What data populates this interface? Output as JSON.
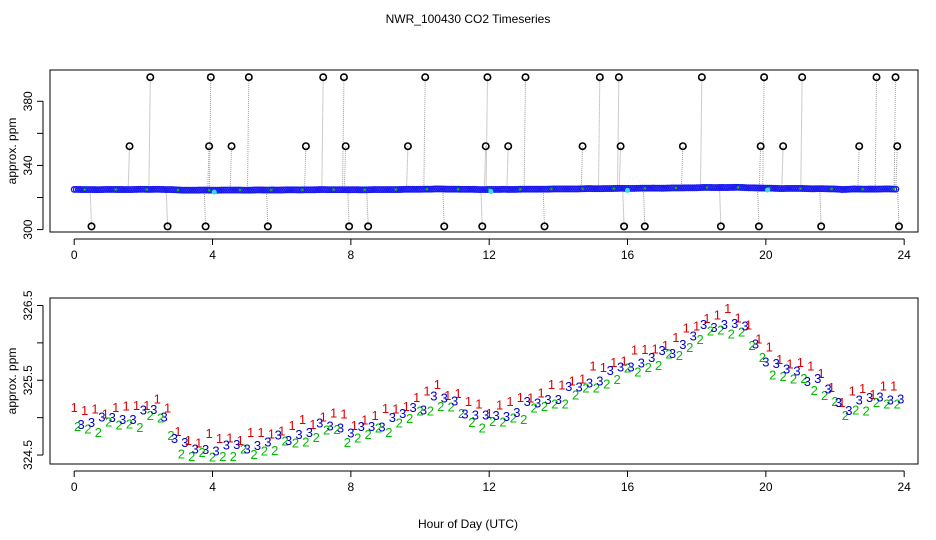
{
  "figure": {
    "title": "NWR_100430  CO2 Timeseries",
    "shared_xlabel": "Hour of Day (UTC)"
  },
  "colors": {
    "axis": "#000000",
    "series_1": "#dd0000",
    "series_2": "#00bb00",
    "series_3": "#0000cc",
    "top_points": "#1a1aee",
    "outline_points": "#000000",
    "connector": "#9a9a9a",
    "cyan_points": "#33dddd"
  },
  "chart_data": [
    {
      "type": "scatter",
      "panel": "top",
      "title": "",
      "xlabel": "",
      "ylabel": "approx. ppm",
      "xlim": [
        -0.7,
        24.4
      ],
      "ylim": [
        298.5,
        399.5
      ],
      "xticks": [
        0,
        4,
        8,
        12,
        16,
        20,
        24
      ],
      "yticks": [
        300,
        320,
        340,
        360,
        380
      ],
      "ytick_labels": [
        "300",
        "",
        "340",
        "",
        "380"
      ],
      "xtick_labels": [
        "0",
        "4",
        "8",
        "12",
        "16",
        "20",
        "24"
      ],
      "baseline": {
        "description": "dense run of nearly flat points from the lower panel, ~324.5-326.5 ppm",
        "x_start": 0.0,
        "x_end": 23.8,
        "step": 0.06
      },
      "spikes": [
        {
          "x": 0.5,
          "y": 302
        },
        {
          "x": 1.6,
          "y": 352
        },
        {
          "x": 2.2,
          "y": 395
        },
        {
          "x": 2.7,
          "y": 302
        },
        {
          "x": 3.8,
          "y": 302
        },
        {
          "x": 3.9,
          "y": 352
        },
        {
          "x": 3.95,
          "y": 395
        },
        {
          "x": 4.55,
          "y": 352
        },
        {
          "x": 5.05,
          "y": 395
        },
        {
          "x": 5.6,
          "y": 302
        },
        {
          "x": 6.7,
          "y": 352
        },
        {
          "x": 7.2,
          "y": 395
        },
        {
          "x": 7.8,
          "y": 395
        },
        {
          "x": 7.85,
          "y": 352
        },
        {
          "x": 7.95,
          "y": 302
        },
        {
          "x": 8.5,
          "y": 302
        },
        {
          "x": 9.65,
          "y": 352
        },
        {
          "x": 10.15,
          "y": 395
        },
        {
          "x": 10.7,
          "y": 302
        },
        {
          "x": 11.8,
          "y": 302
        },
        {
          "x": 11.9,
          "y": 352
        },
        {
          "x": 11.95,
          "y": 395
        },
        {
          "x": 12.55,
          "y": 352
        },
        {
          "x": 13.05,
          "y": 395
        },
        {
          "x": 13.6,
          "y": 302
        },
        {
          "x": 14.7,
          "y": 352
        },
        {
          "x": 15.2,
          "y": 395
        },
        {
          "x": 15.75,
          "y": 395
        },
        {
          "x": 15.8,
          "y": 352
        },
        {
          "x": 15.9,
          "y": 302
        },
        {
          "x": 16.5,
          "y": 302
        },
        {
          "x": 17.6,
          "y": 352
        },
        {
          "x": 18.15,
          "y": 395
        },
        {
          "x": 18.7,
          "y": 302
        },
        {
          "x": 19.8,
          "y": 302
        },
        {
          "x": 19.85,
          "y": 352
        },
        {
          "x": 19.95,
          "y": 395
        },
        {
          "x": 20.5,
          "y": 352
        },
        {
          "x": 21.05,
          "y": 395
        },
        {
          "x": 21.6,
          "y": 302
        },
        {
          "x": 22.7,
          "y": 352
        },
        {
          "x": 23.2,
          "y": 395
        },
        {
          "x": 23.75,
          "y": 395
        },
        {
          "x": 23.8,
          "y": 352
        },
        {
          "x": 23.85,
          "y": 302
        }
      ]
    },
    {
      "type": "scatter",
      "panel": "bottom",
      "title": "",
      "xlabel": "Hour of Day (UTC)",
      "ylabel": "approx. ppm",
      "xlim": [
        -0.7,
        24.4
      ],
      "ylim": [
        324.38,
        326.6
      ],
      "xticks": [
        0,
        4,
        8,
        12,
        16,
        20,
        24
      ],
      "yticks": [
        324.5,
        325.0,
        325.5,
        326.0,
        326.5
      ],
      "ytick_labels": [
        "324.5",
        "",
        "325.5",
        "",
        "326.5"
      ],
      "xtick_labels": [
        "0",
        "4",
        "8",
        "12",
        "16",
        "20",
        "24"
      ],
      "marker_style": "digits",
      "series": [
        {
          "name": "1",
          "label": "1",
          "offset": 0.13
        },
        {
          "name": "2",
          "label": "2",
          "offset": -0.1
        },
        {
          "name": "3",
          "label": "3",
          "offset": 0.0
        }
      ],
      "sample_step": 0.3,
      "profile": {
        "description": "approximate central CO2 curve (ppm) by hour, read from the plot",
        "x": [
          0.0,
          0.5,
          1.0,
          1.5,
          2.0,
          2.4,
          2.7,
          3.0,
          3.3,
          4.0,
          5.0,
          6.0,
          7.0,
          7.5,
          8.0,
          9.0,
          10.0,
          10.5,
          11.0,
          11.5,
          12.0,
          12.5,
          13.0,
          14.0,
          15.0,
          16.0,
          17.0,
          17.5,
          18.0,
          18.5,
          19.0,
          19.3,
          19.7,
          20.0,
          20.5,
          21.0,
          21.5,
          22.0,
          22.2,
          22.5,
          23.0,
          23.5,
          23.8
        ],
        "y": [
          324.98,
          324.95,
          325.0,
          325.0,
          325.05,
          325.15,
          324.95,
          324.7,
          324.58,
          324.6,
          324.62,
          324.72,
          324.85,
          324.95,
          324.8,
          324.95,
          325.15,
          325.3,
          325.2,
          325.05,
          325.0,
          325.05,
          325.15,
          325.3,
          325.5,
          325.7,
          325.85,
          325.95,
          326.15,
          326.25,
          326.28,
          326.25,
          326.0,
          325.8,
          325.65,
          325.6,
          325.5,
          325.3,
          325.05,
          325.22,
          325.25,
          325.28,
          325.28
        ]
      }
    }
  ]
}
